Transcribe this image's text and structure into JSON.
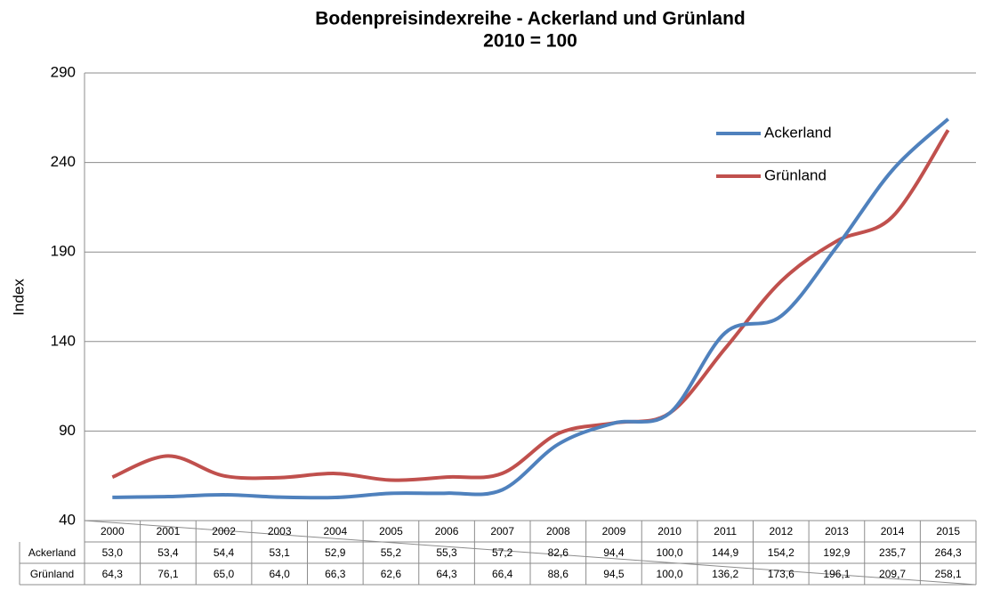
{
  "chart_data": {
    "type": "line",
    "title": "Bodenpreisindexreihe - Ackerland und Grünland",
    "subtitle": "2010 = 100",
    "y_label": "Index",
    "categories": [
      "2000",
      "2001",
      "2002",
      "2003",
      "2004",
      "2005",
      "2006",
      "2007",
      "2008",
      "2009",
      "2010",
      "2011",
      "2012",
      "2013",
      "2014",
      "2015"
    ],
    "series": [
      {
        "name": "Ackerland",
        "color": "#4f81bd",
        "values": [
          53.0,
          53.4,
          54.4,
          53.1,
          52.9,
          55.2,
          55.3,
          57.2,
          82.6,
          94.4,
          100.0,
          144.9,
          154.2,
          192.9,
          235.7,
          264.3
        ],
        "value_labels": [
          "53,0",
          "53,4",
          "54,4",
          "53,1",
          "52,9",
          "55,2",
          "55,3",
          "57,2",
          "82,6",
          "94,4",
          "100,0",
          "144,9",
          "154,2",
          "192,9",
          "235,7",
          "264,3"
        ]
      },
      {
        "name": "Grünland",
        "color": "#c0504d",
        "values": [
          64.3,
          76.1,
          65.0,
          64.0,
          66.3,
          62.6,
          64.3,
          66.4,
          88.6,
          94.5,
          100.0,
          136.2,
          173.6,
          196.1,
          209.7,
          258.1
        ],
        "value_labels": [
          "64,3",
          "76,1",
          "65,0",
          "64,0",
          "66,3",
          "62,6",
          "64,3",
          "66,4",
          "88,6",
          "94,5",
          "100,0",
          "136,2",
          "173,6",
          "196,1",
          "209,7",
          "258,1"
        ]
      }
    ],
    "ylim": [
      40,
      290
    ],
    "yticks": [
      40,
      90,
      140,
      190,
      240,
      290
    ],
    "grid": true,
    "legend": "top-right"
  }
}
